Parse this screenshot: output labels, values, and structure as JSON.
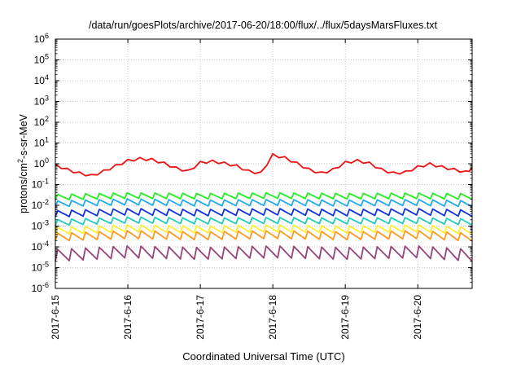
{
  "chart_data": {
    "type": "line",
    "title": "/data/run/goesPlots/archive/2017-06-20/18:00/flux/../flux/5daysMarsFluxes.txt",
    "xlabel": "Coordinated Universal Time (UTC)",
    "ylabel": "protons/cm²-s-sr-MeV",
    "yscale": "log",
    "ylim": [
      1e-06,
      1000000.0
    ],
    "xlim": [
      "2017-06-15 00:00",
      "2017-06-20 18:00"
    ],
    "x_ticks": [
      "2017-6-15",
      "2017-6-16",
      "2017-6-17",
      "2017-6-18",
      "2017-6-19",
      "2017-6-20"
    ],
    "y_ticks": [
      {
        "base": "10",
        "exp": "-6"
      },
      {
        "base": "10",
        "exp": "-5"
      },
      {
        "base": "10",
        "exp": "-4"
      },
      {
        "base": "10",
        "exp": "-3"
      },
      {
        "base": "10",
        "exp": "-2"
      },
      {
        "base": "10",
        "exp": "-1"
      },
      {
        "base": "10",
        "exp": "0"
      },
      {
        "base": "10",
        "exp": "1"
      },
      {
        "base": "10",
        "exp": "2"
      },
      {
        "base": "10",
        "exp": "3"
      },
      {
        "base": "10",
        "exp": "4"
      },
      {
        "base": "10",
        "exp": "5"
      },
      {
        "base": "10",
        "exp": "6"
      }
    ],
    "grid": true,
    "legend": "none",
    "series": [
      {
        "color": "#ee1111",
        "x": [
          "2017-06-15 00:00",
          "2017-06-15 04:00",
          "2017-06-15 08:00",
          "2017-06-15 12:00",
          "2017-06-15 16:00",
          "2017-06-15 20:00",
          "2017-06-16 00:00",
          "2017-06-16 04:00",
          "2017-06-16 08:00",
          "2017-06-16 12:00",
          "2017-06-16 16:00",
          "2017-06-16 20:00",
          "2017-06-17 00:00",
          "2017-06-17 04:00",
          "2017-06-17 08:00",
          "2017-06-17 12:00",
          "2017-06-17 16:00",
          "2017-06-17 20:00",
          "2017-06-18 00:00",
          "2017-06-18 04:00",
          "2017-06-18 08:00",
          "2017-06-18 12:00",
          "2017-06-18 16:00",
          "2017-06-18 20:00",
          "2017-06-19 00:00",
          "2017-06-19 04:00",
          "2017-06-19 08:00",
          "2017-06-19 12:00",
          "2017-06-19 16:00",
          "2017-06-19 20:00",
          "2017-06-20 00:00",
          "2017-06-20 04:00",
          "2017-06-20 08:00",
          "2017-06-20 12:00",
          "2017-06-20 16:00",
          "2017-06-20 18:00"
        ],
        "values": [
          1.0,
          0.6,
          0.4,
          0.3,
          0.5,
          0.9,
          1.6,
          2.0,
          1.8,
          1.2,
          0.7,
          0.5,
          1.3,
          1.5,
          1.2,
          0.9,
          0.5,
          0.4,
          3.0,
          2.2,
          1.2,
          0.6,
          0.4,
          0.6,
          1.3,
          1.6,
          1.2,
          0.6,
          0.4,
          0.45,
          0.8,
          1.1,
          0.8,
          0.6,
          0.45,
          0.7
        ]
      },
      {
        "color": "#22ee22",
        "x": [
          "2017-06-15 00:00",
          "2017-06-16 00:00",
          "2017-06-17 00:00",
          "2017-06-18 00:00",
          "2017-06-19 00:00",
          "2017-06-20 00:00",
          "2017-06-20 18:00"
        ],
        "values": [
          0.025,
          0.03,
          0.028,
          0.03,
          0.028,
          0.029,
          0.027
        ]
      },
      {
        "color": "#22aaee",
        "x": [
          "2017-06-15 00:00",
          "2017-06-16 00:00",
          "2017-06-17 00:00",
          "2017-06-18 00:00",
          "2017-06-19 00:00",
          "2017-06-20 00:00",
          "2017-06-20 18:00"
        ],
        "values": [
          0.012,
          0.015,
          0.013,
          0.014,
          0.013,
          0.014,
          0.012
        ]
      },
      {
        "color": "#1133dd",
        "x": [
          "2017-06-15 00:00",
          "2017-06-16 00:00",
          "2017-06-17 00:00",
          "2017-06-18 00:00",
          "2017-06-19 00:00",
          "2017-06-20 00:00",
          "2017-06-20 18:00"
        ],
        "values": [
          0.004,
          0.005,
          0.0045,
          0.005,
          0.0045,
          0.005,
          0.0042
        ]
      },
      {
        "color": "#22ccbb",
        "x": [
          "2017-06-15 00:00",
          "2017-06-16 00:00",
          "2017-06-17 00:00",
          "2017-06-18 00:00",
          "2017-06-19 00:00",
          "2017-06-20 00:00",
          "2017-06-20 18:00"
        ],
        "values": [
          0.0015,
          0.002,
          0.0018,
          0.0019,
          0.0018,
          0.0019,
          0.0016
        ]
      },
      {
        "color": "#ffee33",
        "x": [
          "2017-06-15 00:00",
          "2017-06-16 00:00",
          "2017-06-17 00:00",
          "2017-06-18 00:00",
          "2017-06-19 00:00",
          "2017-06-20 00:00",
          "2017-06-20 18:00"
        ],
        "values": [
          0.0006,
          0.0008,
          0.0007,
          0.0008,
          0.0007,
          0.0008,
          0.0006
        ]
      },
      {
        "color": "#ff9922",
        "x": [
          "2017-06-15 00:00",
          "2017-06-16 00:00",
          "2017-06-17 00:00",
          "2017-06-18 00:00",
          "2017-06-19 00:00",
          "2017-06-20 00:00",
          "2017-06-20 18:00"
        ],
        "values": [
          0.0003,
          0.0004,
          0.00035,
          0.0004,
          0.00035,
          0.0004,
          0.0003
        ]
      },
      {
        "color": "#994477",
        "x": [
          "2017-06-15 00:00",
          "2017-06-16 00:00",
          "2017-06-17 00:00",
          "2017-06-18 00:00",
          "2017-06-19 00:00",
          "2017-06-20 00:00",
          "2017-06-20 18:00"
        ],
        "values": [
          4e-05,
          6e-05,
          5e-05,
          6e-05,
          5e-05,
          6e-05,
          4e-05
        ]
      }
    ]
  }
}
